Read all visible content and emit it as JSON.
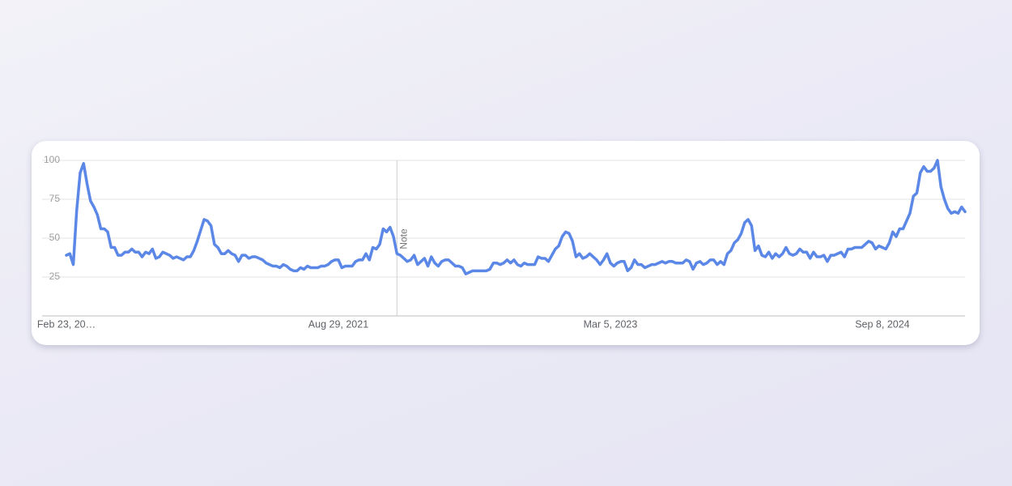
{
  "chart_data": {
    "type": "line",
    "color": "#5b87e6",
    "grid": true,
    "ylim": [
      0,
      100
    ],
    "yticks": [
      25,
      50,
      75,
      100
    ],
    "annotation": {
      "text": "Note",
      "index": 96
    },
    "categories": [
      "Feb 23, 20…",
      null,
      null,
      null,
      null,
      null,
      null,
      null,
      null,
      null,
      null,
      null,
      null,
      null,
      null,
      null,
      null,
      null,
      null,
      null,
      null,
      null,
      null,
      null,
      null,
      null,
      null,
      null,
      null,
      null,
      null,
      null,
      null,
      null,
      null,
      null,
      null,
      null,
      null,
      null,
      null,
      null,
      null,
      null,
      null,
      null,
      null,
      null,
      null,
      null,
      null,
      null,
      null,
      null,
      null,
      null,
      null,
      null,
      null,
      null,
      null,
      null,
      null,
      null,
      null,
      null,
      null,
      null,
      null,
      null,
      null,
      null,
      null,
      null,
      null,
      null,
      null,
      null,
      null,
      "Aug 29, 2021",
      null,
      null,
      null,
      null,
      null,
      null,
      null,
      null,
      null,
      null,
      null,
      null,
      null,
      null,
      null,
      null,
      null,
      null,
      null,
      null,
      null,
      null,
      null,
      null,
      null,
      null,
      null,
      null,
      null,
      null,
      null,
      null,
      null,
      null,
      null,
      null,
      null,
      null,
      null,
      null,
      null,
      null,
      null,
      null,
      null,
      null,
      null,
      null,
      null,
      null,
      null,
      null,
      null,
      null,
      null,
      null,
      null,
      null,
      null,
      null,
      null,
      null,
      null,
      null,
      null,
      null,
      null,
      null,
      null,
      null,
      null,
      null,
      null,
      null,
      null,
      null,
      null,
      null,
      "Mar 5, 2023",
      null,
      null,
      null,
      null,
      null,
      null,
      null,
      null,
      null,
      null,
      null,
      null,
      null,
      null,
      null,
      null,
      null,
      null,
      null,
      null,
      null,
      null,
      null,
      null,
      null,
      null,
      null,
      null,
      null,
      null,
      null,
      null,
      null,
      null,
      null,
      null,
      null,
      null,
      null,
      null,
      null,
      null,
      null,
      null,
      null,
      null,
      null,
      null,
      null,
      null,
      null,
      null,
      null,
      null,
      null,
      null,
      null,
      null,
      null,
      null,
      null,
      null,
      null,
      null,
      null,
      null,
      null,
      null,
      null,
      null,
      null,
      null,
      null,
      null,
      null,
      null,
      null,
      null,
      "Sep 8, 2024",
      null,
      null,
      null,
      null,
      null,
      null,
      null,
      null,
      null,
      null,
      null,
      null,
      null,
      null,
      null,
      null,
      null,
      null,
      null,
      null,
      null,
      null,
      null,
      null
    ],
    "values": [
      39,
      40,
      33,
      68,
      92,
      98,
      85,
      74,
      70,
      65,
      56,
      56,
      54,
      44,
      44,
      39,
      39,
      41,
      41,
      43,
      41,
      41,
      38,
      41,
      40,
      43,
      37,
      38,
      41,
      40,
      39,
      37,
      38,
      37,
      36,
      38,
      38,
      42,
      48,
      55,
      62,
      61,
      58,
      46,
      44,
      40,
      40,
      42,
      40,
      39,
      35,
      39,
      39,
      37,
      38,
      38,
      37,
      36,
      34,
      33,
      32,
      32,
      31,
      33,
      32,
      30,
      29,
      29,
      31,
      30,
      32,
      31,
      31,
      31,
      32,
      32,
      33,
      35,
      36,
      36,
      31,
      32,
      32,
      32,
      35,
      36,
      36,
      40,
      36,
      44,
      43,
      46,
      56,
      54,
      57,
      51,
      40,
      39,
      37,
      35,
      36,
      39,
      33,
      35,
      37,
      32,
      38,
      34,
      32,
      35,
      36,
      36,
      34,
      32,
      32,
      31,
      27,
      28,
      29,
      29,
      29,
      29,
      29,
      30,
      34,
      34,
      33,
      34,
      36,
      34,
      36,
      33,
      32,
      34,
      33,
      33,
      33,
      38,
      37,
      37,
      35,
      39,
      43,
      45,
      51,
      54,
      53,
      48,
      38,
      40,
      37,
      38,
      40,
      38,
      36,
      33,
      36,
      40,
      34,
      32,
      34,
      35,
      35,
      29,
      31,
      36,
      33,
      33,
      31,
      32,
      33,
      33,
      34,
      35,
      34,
      35,
      35,
      34,
      34,
      34,
      36,
      35,
      30,
      34,
      35,
      33,
      34,
      36,
      36,
      33,
      35,
      33,
      40,
      42,
      47,
      49,
      53,
      60,
      62,
      58,
      42,
      45,
      39,
      38,
      41,
      37,
      40,
      38,
      40,
      44,
      40,
      39,
      40,
      43,
      41,
      41,
      37,
      41,
      38,
      38,
      39,
      35,
      39,
      39,
      40,
      41,
      38,
      43,
      43,
      44,
      44,
      44,
      46,
      48,
      47,
      43,
      45,
      44,
      43,
      47,
      54,
      51,
      56,
      56,
      61,
      66,
      77,
      79,
      92,
      96,
      93,
      93,
      95,
      100,
      83,
      75,
      69,
      66,
      67,
      66,
      70,
      67
    ]
  }
}
